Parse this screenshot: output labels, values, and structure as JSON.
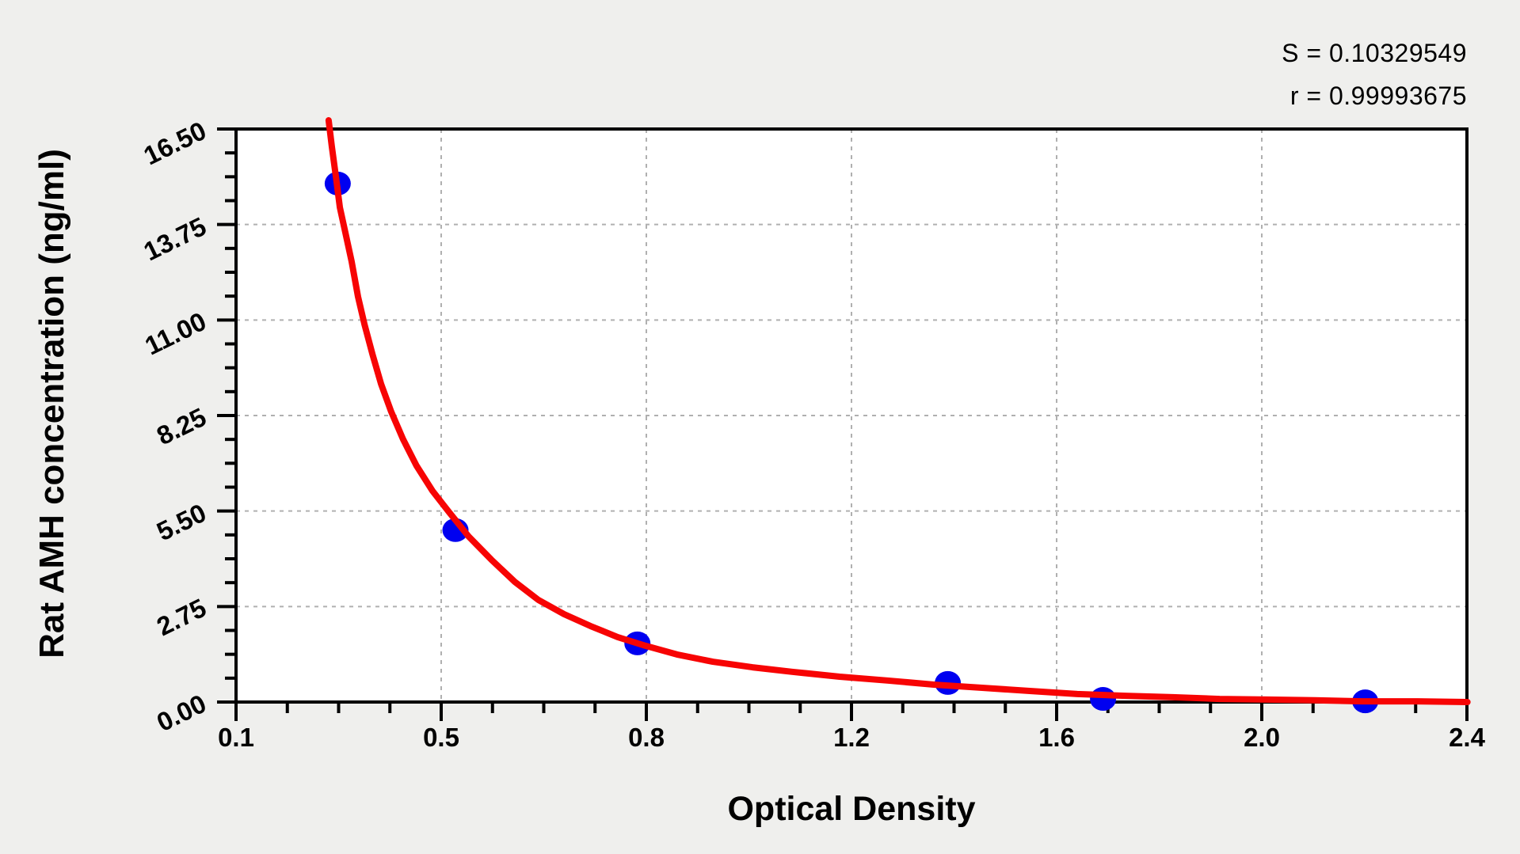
{
  "stats": {
    "s_text": "S = 0.10329549",
    "r_text": "r = 0.99993675"
  },
  "axes": {
    "x": {
      "title": "Optical Density",
      "tick_labels": [
        "0.1",
        "0.5",
        "0.8",
        "1.2",
        "1.6",
        "2.0",
        "2.4"
      ],
      "min": 0.1,
      "max": 2.4,
      "minor_ticks_per_interval": 3
    },
    "y": {
      "title": "Rat AMH concentration (ng/ml)",
      "tick_labels": [
        "0.00",
        "2.75",
        "5.50",
        "8.25",
        "11.00",
        "13.75",
        "16.50"
      ],
      "min": 0,
      "max": 16.5,
      "minor_ticks_per_interval": 3
    }
  },
  "chart_data": {
    "type": "scatter",
    "title": "",
    "xlabel": "Optical Density",
    "ylabel": "Rat AMH concentration (ng/ml)",
    "xlim": [
      0.1,
      2.4
    ],
    "ylim": [
      0,
      16.5
    ],
    "grid": "dashed gray lines at every major tick",
    "legend": "none",
    "fit_stats": {
      "S": 0.10329549,
      "r": 0.99993675
    },
    "points": [
      {
        "od": 0.29,
        "conc": 14.93
      },
      {
        "od": 0.51,
        "conc": 4.95
      },
      {
        "od": 0.85,
        "conc": 1.69
      },
      {
        "od": 1.43,
        "conc": 0.55
      },
      {
        "od": 1.72,
        "conc": 0.09
      },
      {
        "od": 2.21,
        "conc": 0.02
      }
    ],
    "fit_curve": [
      [
        0.273,
        16.75
      ],
      [
        0.279,
        16.0
      ],
      [
        0.287,
        15.09
      ],
      [
        0.294,
        14.24
      ],
      [
        0.304,
        13.54
      ],
      [
        0.316,
        12.69
      ],
      [
        0.328,
        11.67
      ],
      [
        0.34,
        10.87
      ],
      [
        0.355,
        10.01
      ],
      [
        0.371,
        9.16
      ],
      [
        0.39,
        8.36
      ],
      [
        0.412,
        7.57
      ],
      [
        0.437,
        6.81
      ],
      [
        0.467,
        6.08
      ],
      [
        0.498,
        5.47
      ],
      [
        0.535,
        4.76
      ],
      [
        0.577,
        4.1
      ],
      [
        0.621,
        3.46
      ],
      [
        0.665,
        2.94
      ],
      [
        0.713,
        2.53
      ],
      [
        0.762,
        2.19
      ],
      [
        0.813,
        1.87
      ],
      [
        0.865,
        1.62
      ],
      [
        0.924,
        1.37
      ],
      [
        0.991,
        1.16
      ],
      [
        1.065,
        1.0
      ],
      [
        1.139,
        0.87
      ],
      [
        1.228,
        0.73
      ],
      [
        1.317,
        0.62
      ],
      [
        1.406,
        0.5
      ],
      [
        1.494,
        0.41
      ],
      [
        1.583,
        0.32
      ],
      [
        1.672,
        0.23
      ],
      [
        1.761,
        0.18
      ],
      [
        1.85,
        0.14
      ],
      [
        1.938,
        0.09
      ],
      [
        2.027,
        0.07
      ],
      [
        2.116,
        0.05
      ],
      [
        2.205,
        0.02
      ],
      [
        2.308,
        0.02
      ],
      [
        2.401,
        0.0
      ]
    ],
    "colors": {
      "point": "#0000f0",
      "curve": "#f70404",
      "grid": "#b0b0b0",
      "axis": "#000000",
      "plot_bg": "#ffffff",
      "page_bg": "#efefed",
      "text": "#000000"
    }
  }
}
